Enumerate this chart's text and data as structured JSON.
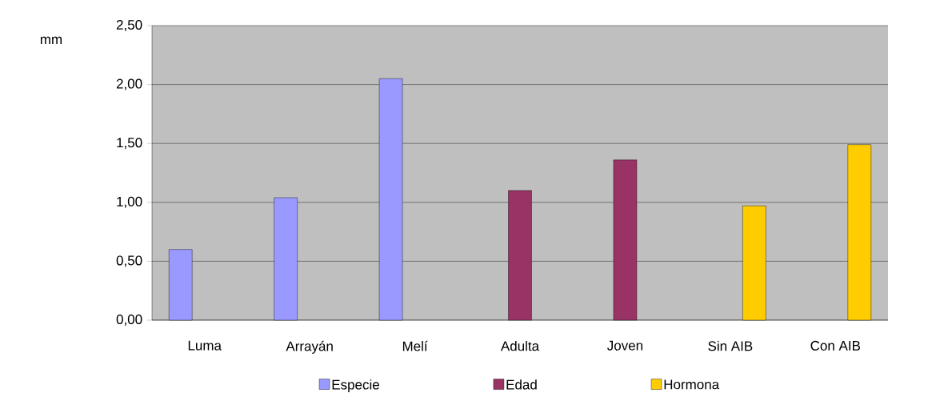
{
  "chart_data": {
    "type": "bar",
    "ylabel": "mm",
    "categories": [
      "Luma",
      "Arrayán",
      "Melí",
      "Adulta",
      "Joven",
      "Sin AIB",
      "Con AIB"
    ],
    "series": [
      {
        "name": "Especie",
        "color": "#9999ff",
        "values": [
          0.6,
          1.04,
          2.05,
          null,
          null,
          null,
          null
        ]
      },
      {
        "name": "Edad",
        "color": "#993366",
        "values": [
          null,
          null,
          null,
          1.1,
          1.36,
          null,
          null
        ]
      },
      {
        "name": "Hormona",
        "color": "#ffcc00",
        "values": [
          null,
          null,
          null,
          null,
          null,
          0.97,
          1.49
        ]
      }
    ],
    "ylim": [
      0,
      2.5
    ],
    "yticks": [
      {
        "value": 0,
        "label": "0,00"
      },
      {
        "value": 0.5,
        "label": "0,50"
      },
      {
        "value": 1,
        "label": "1,00"
      },
      {
        "value": 1.5,
        "label": "1,50"
      },
      {
        "value": 2,
        "label": "2,00"
      },
      {
        "value": 2.5,
        "label": "2,50"
      }
    ],
    "grid": "y",
    "legend": "bottom"
  }
}
